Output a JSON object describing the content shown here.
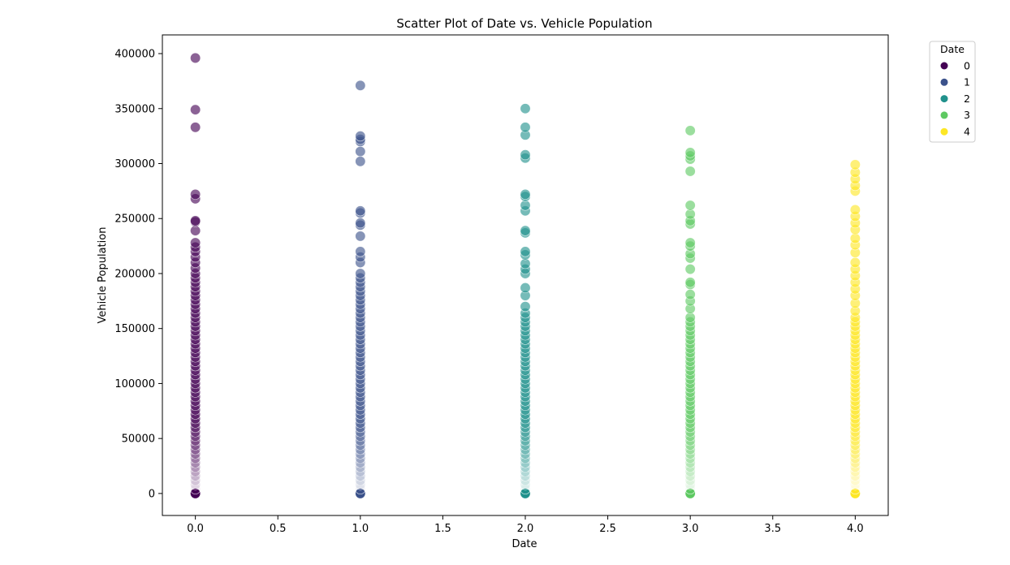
{
  "chart_data": {
    "type": "scatter",
    "title": "Scatter Plot of Date vs. Vehicle Population",
    "xlabel": "Date",
    "ylabel": "Vehicle Population",
    "xlim": [
      -0.2,
      4.2
    ],
    "ylim": [
      -20000,
      417000
    ],
    "x_ticks": [
      0.0,
      0.5,
      1.0,
      1.5,
      2.0,
      2.5,
      3.0,
      3.5,
      4.0
    ],
    "x_tick_labels": [
      "0.0",
      "0.5",
      "1.0",
      "1.5",
      "2.0",
      "2.5",
      "3.0",
      "3.5",
      "4.0"
    ],
    "y_ticks": [
      0,
      50000,
      100000,
      150000,
      200000,
      250000,
      300000,
      350000,
      400000
    ],
    "y_tick_labels": [
      "0",
      "50000",
      "100000",
      "150000",
      "200000",
      "250000",
      "300000",
      "350000",
      "400000"
    ],
    "grid": false,
    "legend": {
      "title": "Date",
      "placement": "outside-top-right",
      "entries": [
        "0",
        "1",
        "2",
        "3",
        "4"
      ]
    },
    "series": [
      {
        "name": "0",
        "color": "#440154",
        "x": 0,
        "values": [
          0,
          4000,
          8000,
          12000,
          16000,
          20000,
          24000,
          28000,
          32000,
          36000,
          40000,
          44000,
          48000,
          52000,
          56000,
          60000,
          64000,
          68000,
          72000,
          76000,
          80000,
          84000,
          88000,
          92000,
          96000,
          100000,
          104000,
          108000,
          112000,
          116000,
          120000,
          124000,
          128000,
          132000,
          136000,
          140000,
          144000,
          148000,
          152000,
          156000,
          160000,
          164000,
          168000,
          172000,
          176000,
          180000,
          184000,
          188000,
          192000,
          196000,
          200000,
          205000,
          210000,
          215000,
          220000,
          224000,
          228000,
          239000,
          247000,
          248000,
          268000,
          272000,
          333000,
          349000,
          396000
        ]
      },
      {
        "name": "1",
        "color": "#3b528b",
        "x": 1,
        "values": [
          0,
          4000,
          8000,
          12000,
          16000,
          20000,
          24000,
          28000,
          32000,
          36000,
          40000,
          44000,
          48000,
          52000,
          56000,
          60000,
          64000,
          68000,
          72000,
          76000,
          80000,
          84000,
          88000,
          92000,
          96000,
          100000,
          104000,
          108000,
          112000,
          116000,
          120000,
          124000,
          128000,
          132000,
          136000,
          140000,
          144000,
          148000,
          152000,
          156000,
          160000,
          164000,
          168000,
          172000,
          176000,
          180000,
          184000,
          188000,
          192000,
          196000,
          200000,
          210000,
          215000,
          220000,
          234000,
          244000,
          246000,
          255000,
          257000,
          302000,
          311000,
          320000,
          322000,
          325000,
          371000
        ]
      },
      {
        "name": "2",
        "color": "#21918c",
        "x": 2,
        "values": [
          0,
          4000,
          8000,
          12000,
          16000,
          20000,
          24000,
          28000,
          32000,
          36000,
          40000,
          44000,
          48000,
          52000,
          56000,
          60000,
          64000,
          68000,
          72000,
          76000,
          80000,
          84000,
          88000,
          92000,
          96000,
          100000,
          104000,
          108000,
          112000,
          116000,
          120000,
          124000,
          128000,
          132000,
          136000,
          140000,
          144000,
          148000,
          152000,
          156000,
          160000,
          164000,
          170000,
          180000,
          187000,
          200000,
          204000,
          209000,
          217000,
          220000,
          237000,
          239000,
          257000,
          262000,
          270000,
          272000,
          305000,
          308000,
          326000,
          333000,
          350000
        ]
      },
      {
        "name": "3",
        "color": "#5ec962",
        "x": 3,
        "values": [
          0,
          4000,
          8000,
          12000,
          16000,
          20000,
          24000,
          28000,
          32000,
          36000,
          40000,
          44000,
          48000,
          52000,
          56000,
          60000,
          64000,
          68000,
          72000,
          76000,
          80000,
          84000,
          88000,
          92000,
          96000,
          100000,
          104000,
          108000,
          112000,
          116000,
          120000,
          124000,
          128000,
          132000,
          136000,
          140000,
          144000,
          148000,
          152000,
          156000,
          160000,
          168000,
          175000,
          181000,
          190000,
          192000,
          204000,
          214000,
          218000,
          225000,
          228000,
          245000,
          248000,
          254000,
          262000,
          293000,
          304000,
          307000,
          310000,
          330000
        ]
      },
      {
        "name": "4",
        "color": "#fde725",
        "x": 4,
        "values": [
          0,
          4000,
          8000,
          12000,
          16000,
          20000,
          24000,
          28000,
          32000,
          36000,
          40000,
          44000,
          48000,
          52000,
          56000,
          60000,
          64000,
          68000,
          72000,
          76000,
          80000,
          84000,
          88000,
          92000,
          96000,
          100000,
          104000,
          108000,
          112000,
          116000,
          120000,
          124000,
          128000,
          132000,
          136000,
          140000,
          144000,
          148000,
          152000,
          156000,
          160000,
          166000,
          173000,
          180000,
          186000,
          192000,
          198000,
          204000,
          210000,
          219000,
          226000,
          232000,
          240000,
          246000,
          252000,
          258000,
          275000,
          280000,
          286000,
          292000,
          299000
        ]
      }
    ]
  }
}
